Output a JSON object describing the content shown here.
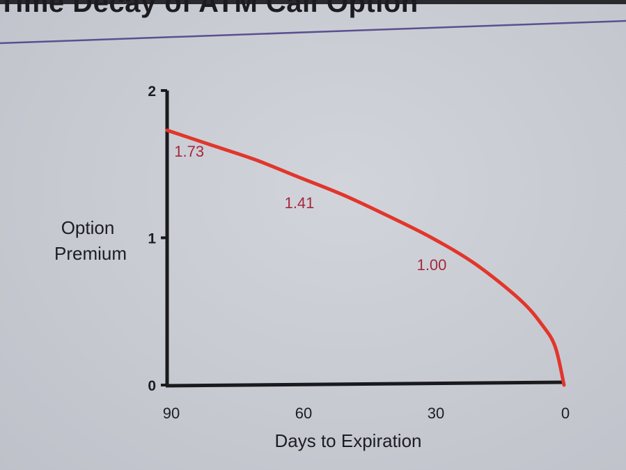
{
  "title": "Time Decay of ATM Call Option",
  "colors": {
    "curve": "#e2362b",
    "axis": "#1a1a1e",
    "divider": "#5b4f8f",
    "data_label": "#a5283a"
  },
  "chart_data": {
    "type": "line",
    "title": "Time Decay of ATM Call Option",
    "xlabel": "Days to Expiration",
    "ylabel_lines": [
      "Option",
      "Premium"
    ],
    "x_ticks": [
      90,
      60,
      30,
      0
    ],
    "y_ticks": [
      0,
      1,
      2
    ],
    "xlim": [
      90,
      0
    ],
    "ylim": [
      0,
      2
    ],
    "x_reversed": true,
    "grid": false,
    "series": [
      {
        "x": [
          90,
          80,
          70,
          60,
          50,
          40,
          30,
          20,
          10,
          5,
          2,
          0
        ],
        "values": [
          1.73,
          1.63,
          1.53,
          1.41,
          1.29,
          1.15,
          1.0,
          0.82,
          0.58,
          0.41,
          0.26,
          0.0
        ]
      }
    ],
    "annotations": [
      {
        "text": "1.73",
        "x": 85,
        "y": 1.55
      },
      {
        "text": "1.41",
        "x": 60,
        "y": 1.2
      },
      {
        "text": "1.00",
        "x": 30,
        "y": 0.78
      }
    ]
  }
}
